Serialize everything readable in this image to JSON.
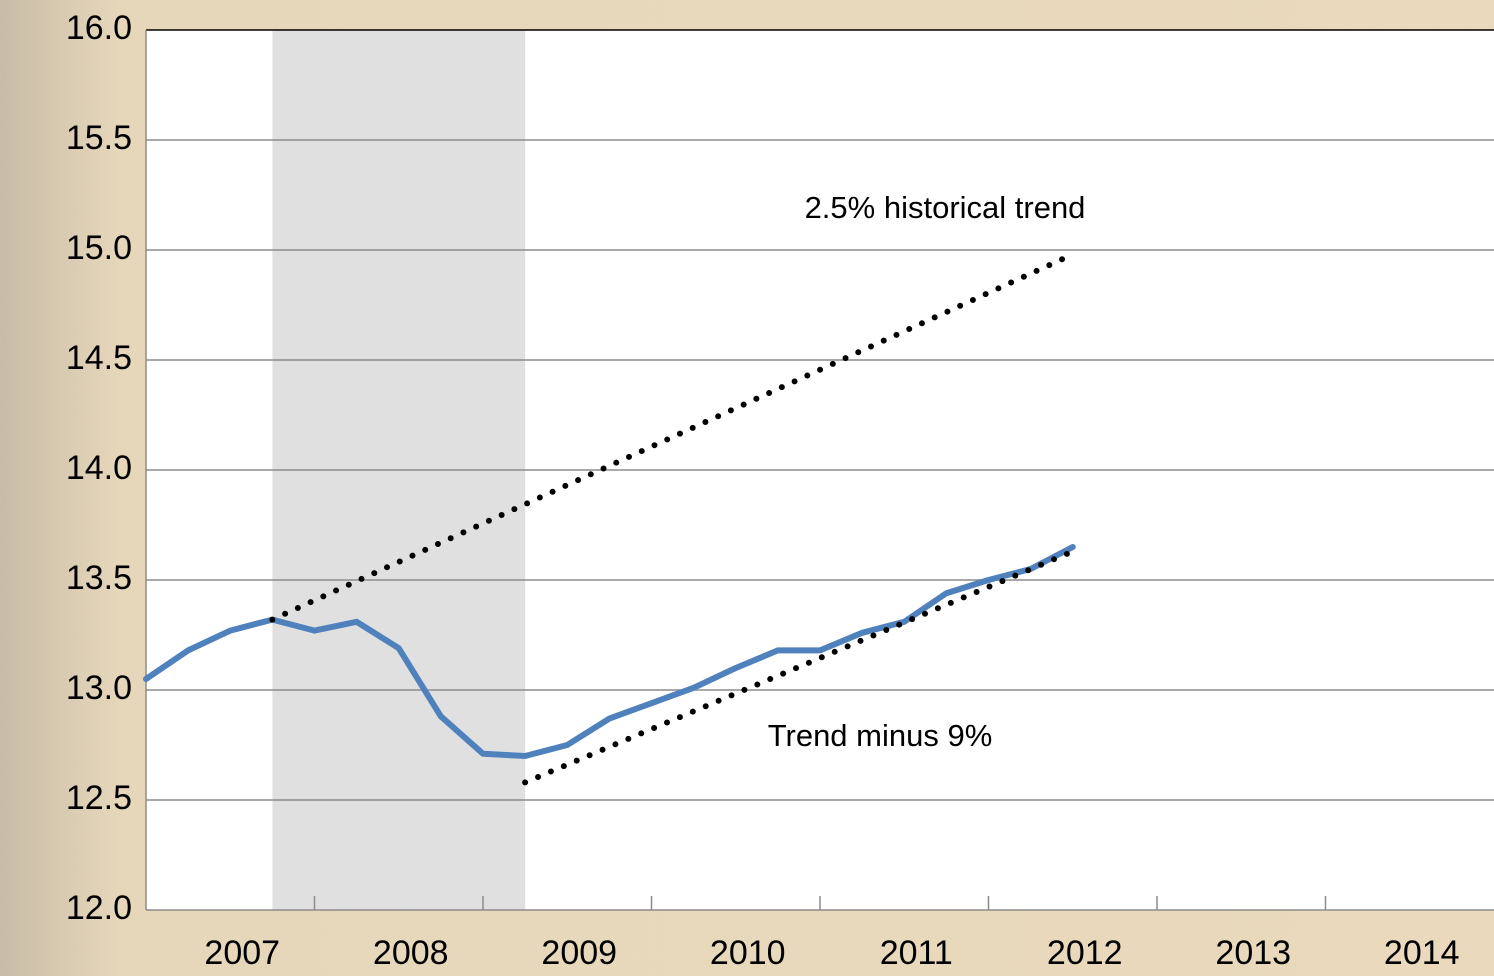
{
  "chart_data": {
    "type": "line",
    "categories": [
      "2007",
      "2008",
      "2009",
      "2010",
      "2011",
      "2012",
      "2013",
      "2014"
    ],
    "xlim": [
      2007,
      2015
    ],
    "ylim": [
      12.0,
      16.0
    ],
    "yticks": [
      {
        "value": 12,
        "label": "12.0"
      },
      12.5,
      {
        "value": 13,
        "label": "13.0"
      },
      13.5,
      {
        "value": 14,
        "label": "14.0"
      },
      14.5,
      {
        "value": 15,
        "label": "15.0"
      },
      15.5,
      {
        "value": 16,
        "label": "16.0"
      }
    ],
    "grid": true,
    "shade": [
      2007.75,
      2009.25
    ],
    "series": [
      {
        "color": "#4f81bd",
        "style": "solid",
        "x": [
          2007,
          2007.25,
          2007.5,
          2007.75,
          2008,
          2008.25,
          2008.5,
          2008.75,
          2009,
          2009.25,
          2009.5,
          2009.75,
          2010,
          2010.25,
          2010.5,
          2010.75,
          2011,
          2011.25,
          2011.5,
          2011.75,
          2012,
          2012.25,
          2012.5
        ],
        "values": [
          13.05,
          13.18,
          13.27,
          13.32,
          13.27,
          13.31,
          13.19,
          12.88,
          12.71,
          12.7,
          12.75,
          12.87,
          12.94,
          13.01,
          13.1,
          13.18,
          13.18,
          13.26,
          13.31,
          13.44,
          13.5,
          13.55,
          13.65
        ]
      },
      {
        "color": "#000000",
        "style": "dotted",
        "x": [
          2007.75,
          2012.5
        ],
        "values": [
          13.32,
          14.98
        ]
      },
      {
        "color": "#000000",
        "style": "dotted",
        "x": [
          2009.25,
          2012.5
        ],
        "values": [
          12.58,
          13.63
        ]
      }
    ],
    "annotations": [
      "2.5% historical trend",
      "Trend minus 9%"
    ]
  }
}
